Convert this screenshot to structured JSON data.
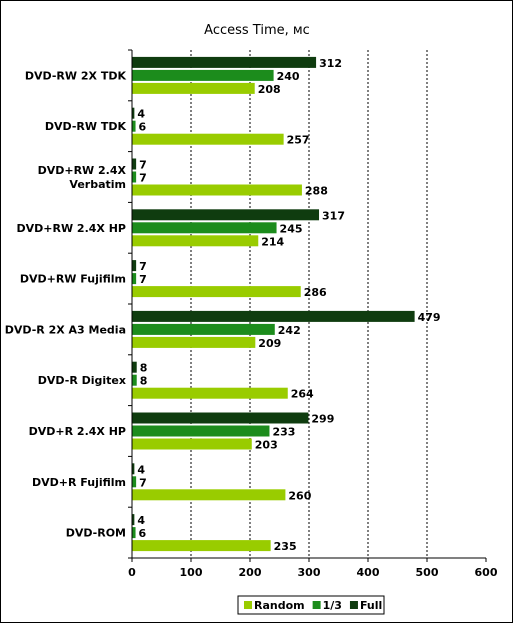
{
  "chart_data": {
    "type": "bar",
    "orientation": "horizontal",
    "title": "Access Time, мс",
    "categories": [
      "DVD-RW 2X TDK",
      "DVD-RW TDK",
      "DVD+RW 2.4X Verbatim",
      "DVD+RW 2.4X HP",
      "DVD+RW Fujifilm",
      "DVD-R 2X A3 Media",
      "DVD-R Digitex",
      "DVD+R 2.4X HP",
      "DVD+R Fujifilm",
      "DVD-ROM"
    ],
    "category_lines": [
      [
        "DVD-RW 2X TDK"
      ],
      [
        "DVD-RW TDK"
      ],
      [
        "DVD+RW 2.4X",
        "Verbatim"
      ],
      [
        "DVD+RW 2.4X HP"
      ],
      [
        "DVD+RW Fujifilm"
      ],
      [
        "DVD-R 2X A3 Media"
      ],
      [
        "DVD-R Digitex"
      ],
      [
        "DVD+R 2.4X HP"
      ],
      [
        "DVD+R Fujifilm"
      ],
      [
        "DVD-ROM"
      ]
    ],
    "series": [
      {
        "name": "Full",
        "color": "#0f3c0f",
        "values": [
          312,
          4,
          7,
          317,
          7,
          479,
          8,
          299,
          4,
          4
        ]
      },
      {
        "name": "1/3",
        "color": "#1c8c1c",
        "values": [
          240,
          6,
          7,
          245,
          7,
          242,
          8,
          233,
          7,
          6
        ]
      },
      {
        "name": "Random",
        "color": "#99cc00",
        "values": [
          208,
          257,
          288,
          214,
          286,
          209,
          264,
          203,
          260,
          235
        ]
      }
    ],
    "legend_order": [
      "Random",
      "1/3",
      "Full"
    ],
    "xlim": [
      0,
      600
    ],
    "xticks": [
      0,
      100,
      200,
      300,
      400,
      500,
      600
    ],
    "grid": "vertical dashed",
    "legend_position": "bottom-right"
  }
}
